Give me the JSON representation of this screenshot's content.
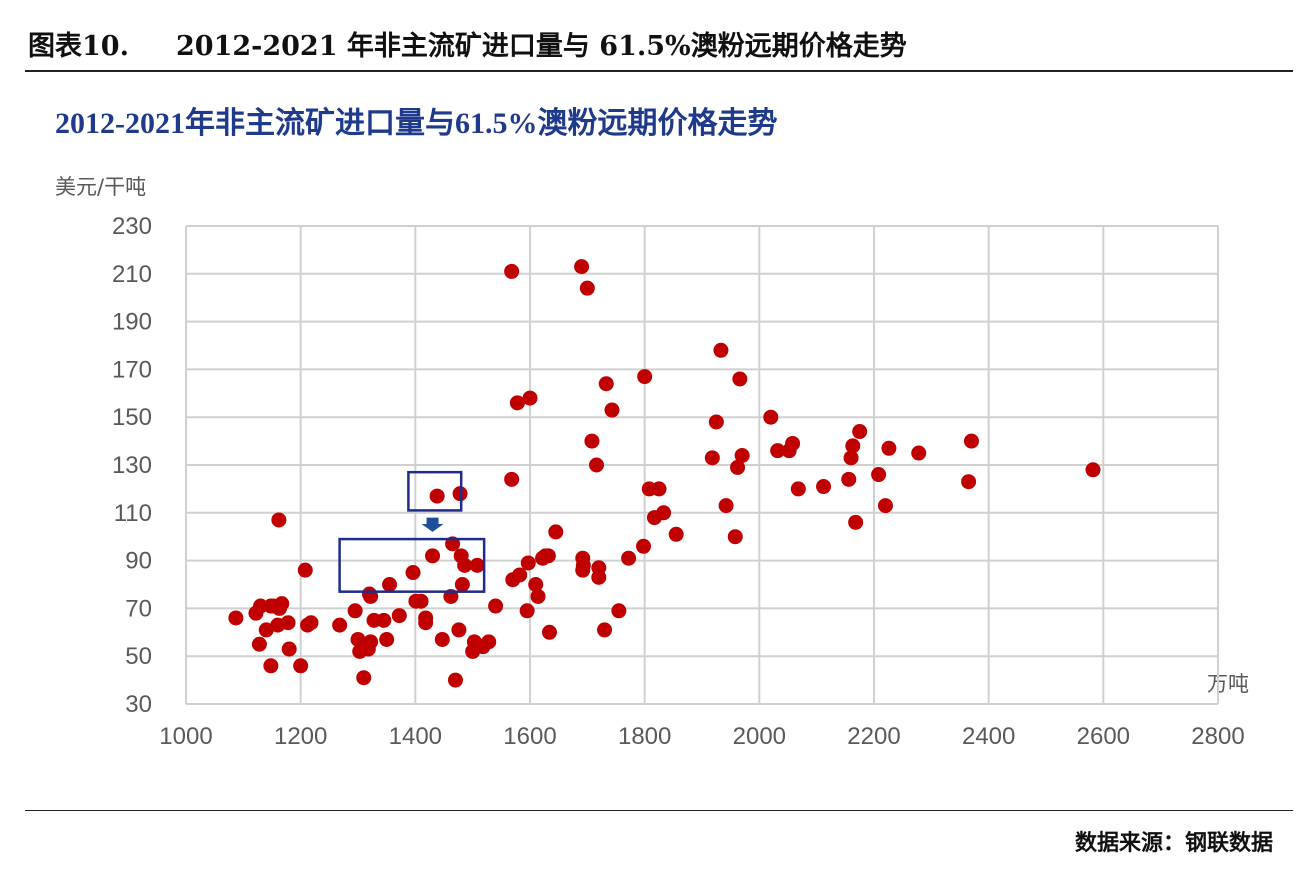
{
  "figure": {
    "label": "图表10.",
    "title": "2012-2021 年非主流矿进口量与 61.5%澳粉远期价格走势",
    "source": "数据来源：钢联数据"
  },
  "colors": {
    "point": "#c00000",
    "title": "#1f3a8a",
    "box": "#1f2d8a",
    "arrow": "#1f4e9a",
    "grid": "#d0d0d0",
    "axis_text": "#595959"
  },
  "chart_data": {
    "type": "scatter",
    "title": "2012-2021年非主流矿进口量与61.5%澳粉远期价格走势",
    "xlabel": "万吨",
    "ylabel": "美元/干吨",
    "xlim": [
      1000,
      2800
    ],
    "ylim": [
      30,
      230
    ],
    "xticks": [
      1000,
      1200,
      1400,
      1600,
      1800,
      2000,
      2200,
      2400,
      2600,
      2800
    ],
    "yticks": [
      30,
      50,
      70,
      90,
      110,
      130,
      150,
      170,
      190,
      210,
      230
    ],
    "grid": true,
    "annotations": [
      {
        "type": "box",
        "x": [
          1435,
          1480
        ],
        "y": [
          111,
          127
        ]
      },
      {
        "type": "arrow",
        "from_y": 108,
        "to_y": 102,
        "x": 1430
      },
      {
        "type": "box",
        "x": [
          1315,
          1520
        ],
        "y": [
          77,
          99
        ]
      }
    ],
    "series": [
      {
        "points": [
          [
            1087,
            66
          ],
          [
            1122,
            68
          ],
          [
            1130,
            71
          ],
          [
            1140,
            61
          ],
          [
            1148,
            71
          ],
          [
            1128,
            55
          ],
          [
            1148,
            46
          ],
          [
            1152,
            71
          ],
          [
            1160,
            63
          ],
          [
            1163,
            70
          ],
          [
            1167,
            72
          ],
          [
            1162,
            107
          ],
          [
            1178,
            64
          ],
          [
            1180,
            53
          ],
          [
            1200,
            46
          ],
          [
            1208,
            86
          ],
          [
            1212,
            63
          ],
          [
            1218,
            64
          ],
          [
            1268,
            63
          ],
          [
            1295,
            69
          ],
          [
            1300,
            57
          ],
          [
            1303,
            52
          ],
          [
            1310,
            41
          ],
          [
            1318,
            53
          ],
          [
            1322,
            56
          ],
          [
            1320,
            76
          ],
          [
            1322,
            75
          ],
          [
            1328,
            65
          ],
          [
            1345,
            65
          ],
          [
            1350,
            57
          ],
          [
            1355,
            80
          ],
          [
            1372,
            67
          ],
          [
            1396,
            85
          ],
          [
            1401,
            73
          ],
          [
            1410,
            73
          ],
          [
            1418,
            66
          ],
          [
            1418,
            64
          ],
          [
            1430,
            92
          ],
          [
            1438,
            117
          ],
          [
            1447,
            57
          ],
          [
            1465,
            97
          ],
          [
            1470,
            40
          ],
          [
            1462,
            75
          ],
          [
            1476,
            61
          ],
          [
            1478,
            118
          ],
          [
            1480,
            92
          ],
          [
            1482,
            80
          ],
          [
            1486,
            88
          ],
          [
            1500,
            52
          ],
          [
            1503,
            56
          ],
          [
            1508,
            88
          ],
          [
            1518,
            54
          ],
          [
            1528,
            56
          ],
          [
            1540,
            71
          ],
          [
            1568,
            211
          ],
          [
            1568,
            124
          ],
          [
            1570,
            82
          ],
          [
            1578,
            156
          ],
          [
            1582,
            84
          ],
          [
            1595,
            69
          ],
          [
            1597,
            89
          ],
          [
            1600,
            158
          ],
          [
            1610,
            80
          ],
          [
            1614,
            75
          ],
          [
            1622,
            91
          ],
          [
            1627,
            92
          ],
          [
            1632,
            92
          ],
          [
            1634,
            60
          ],
          [
            1645,
            102
          ],
          [
            1690,
            213
          ],
          [
            1692,
            91
          ],
          [
            1692,
            86
          ],
          [
            1693,
            88
          ],
          [
            1700,
            204
          ],
          [
            1708,
            140
          ],
          [
            1716,
            130
          ],
          [
            1720,
            83
          ],
          [
            1720,
            87
          ],
          [
            1730,
            61
          ],
          [
            1733,
            164
          ],
          [
            1743,
            153
          ],
          [
            1755,
            69
          ],
          [
            1772,
            91
          ],
          [
            1800,
            167
          ],
          [
            1798,
            96
          ],
          [
            1808,
            120
          ],
          [
            1817,
            108
          ],
          [
            1825,
            120
          ],
          [
            1833,
            110
          ],
          [
            1855,
            101
          ],
          [
            1918,
            133
          ],
          [
            1925,
            148
          ],
          [
            1933,
            178
          ],
          [
            1942,
            113
          ],
          [
            1958,
            100
          ],
          [
            1962,
            129
          ],
          [
            1966,
            166
          ],
          [
            1970,
            134
          ],
          [
            2020,
            150
          ],
          [
            2032,
            136
          ],
          [
            2052,
            136
          ],
          [
            2058,
            139
          ],
          [
            2068,
            120
          ],
          [
            2112,
            121
          ],
          [
            2156,
            124
          ],
          [
            2160,
            133
          ],
          [
            2163,
            138
          ],
          [
            2168,
            106
          ],
          [
            2175,
            144
          ],
          [
            2208,
            126
          ],
          [
            2220,
            113
          ],
          [
            2226,
            137
          ],
          [
            2278,
            135
          ],
          [
            2365,
            123
          ],
          [
            2370,
            140
          ],
          [
            2582,
            128
          ]
        ]
      }
    ]
  }
}
